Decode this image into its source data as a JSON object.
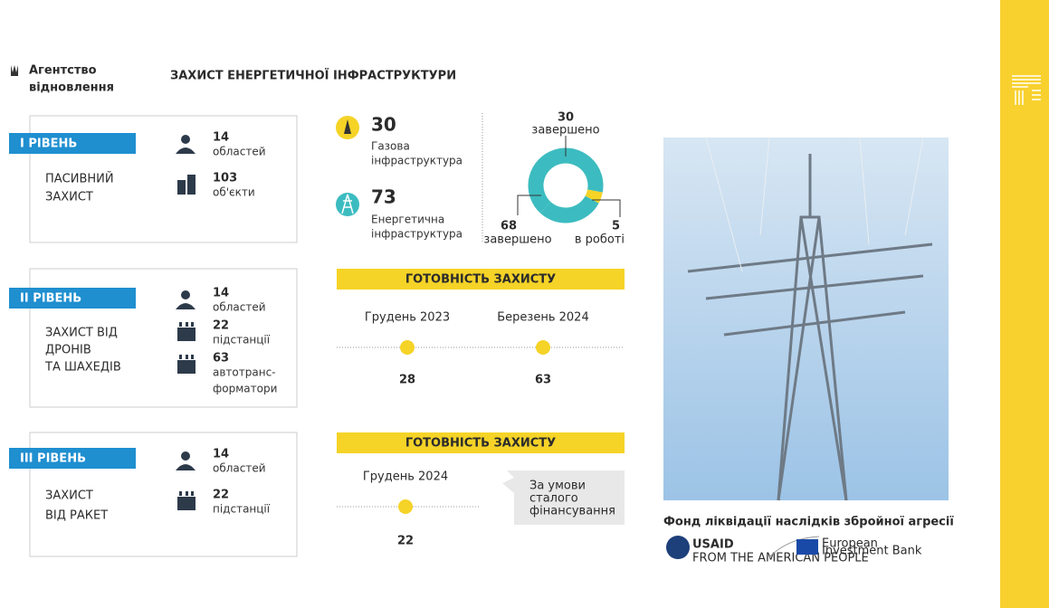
{
  "header": {
    "agency": [
      "Агентство",
      "відновлення"
    ],
    "title": "ЗАХИСТ ЕНЕРГЕТИЧНОЇ ІНФРАСТРУКТУРИ"
  },
  "levels": [
    {
      "badge": "І РІВЕНЬ",
      "name": [
        "ПАСИВНИЙ",
        "ЗАХИСТ"
      ],
      "stats": [
        {
          "value": 14,
          "label": [
            "областей"
          ]
        },
        {
          "value": 103,
          "label": [
            "об'єкти"
          ]
        }
      ]
    },
    {
      "badge": "ІІ РІВЕНЬ",
      "name": [
        "ЗАХИСТ ВІД",
        "ДРОНІВ",
        "ТА ШАХЕДІВ"
      ],
      "stats": [
        {
          "value": 14,
          "label": [
            "областей"
          ]
        },
        {
          "value": 22,
          "label": [
            "підстанції"
          ]
        },
        {
          "value": 63,
          "label": [
            "автотранс-",
            "форматори"
          ]
        }
      ]
    },
    {
      "badge": "ІІІ РІВЕНЬ",
      "name": [
        "ЗАХИСТ",
        "ВІД РАКЕТ"
      ],
      "stats": [
        {
          "value": 14,
          "label": [
            "областей"
          ]
        },
        {
          "value": 22,
          "label": [
            "підстанції"
          ]
        }
      ]
    }
  ],
  "infrastructure": [
    {
      "value": 30,
      "label": [
        "Газова",
        "інфраструктура"
      ]
    },
    {
      "value": 73,
      "label": [
        "Енергетична",
        "інфраструктура"
      ]
    }
  ],
  "donut": {
    "segments": [
      {
        "value": 30,
        "label": "завершено",
        "color": "#3cbcc0"
      },
      {
        "value": 68,
        "label": "завершено",
        "color": "#3cbcc0"
      },
      {
        "value": 5,
        "label": "в роботі",
        "color": "#f5d327"
      }
    ]
  },
  "readiness": [
    {
      "title": "ГОТОВНІСТЬ ЗАХИСТУ",
      "points": [
        {
          "date": "Грудень 2023",
          "value": 28
        },
        {
          "date": "Березень 2024",
          "value": 63
        }
      ]
    },
    {
      "title": "ГОТОВНІСТЬ ЗАХИСТУ",
      "points": [
        {
          "date": "Грудень 2024",
          "value": 22
        }
      ],
      "note": [
        "За умови",
        "сталого",
        "фінансування"
      ]
    }
  ],
  "fund": "Фонд ліквідації наслідків збройної агресії",
  "partners": {
    "usaid": "USAID",
    "usaid_sub": "FROM THE AMERICAN PEOPLE",
    "eib": [
      "European",
      "Investment Bank"
    ]
  }
}
